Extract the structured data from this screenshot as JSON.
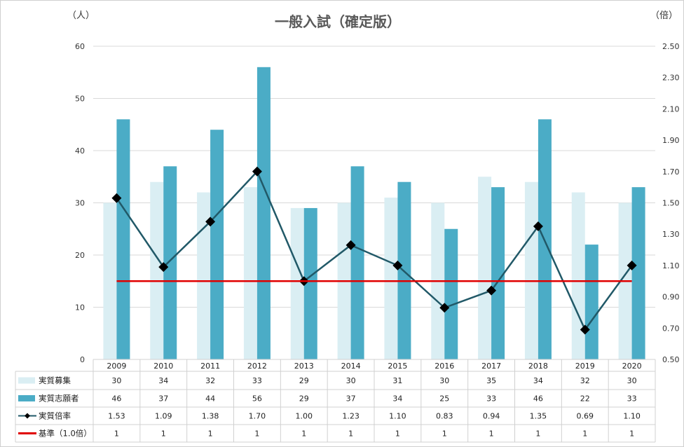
{
  "chart_data": {
    "type": "bar",
    "title": "一般入試（確定版）",
    "left_unit": "（人）",
    "right_unit": "（倍）",
    "categories": [
      "2009",
      "2010",
      "2011",
      "2012",
      "2013",
      "2014",
      "2015",
      "2016",
      "2017",
      "2018",
      "2019",
      "2020"
    ],
    "y_left": {
      "min": 0,
      "max": 60,
      "step": 10,
      "ticks": [
        "0",
        "10",
        "20",
        "30",
        "40",
        "50",
        "60"
      ]
    },
    "y_right": {
      "min": 0.5,
      "max": 2.5,
      "ticks": [
        "0.50",
        "0.70",
        "0.90",
        "1.10",
        "1.30",
        "1.50",
        "1.70",
        "1.90",
        "2.10",
        "2.30",
        "2.50"
      ]
    },
    "series": [
      {
        "name": "実質募集",
        "kind": "bar",
        "color": "#daeef3",
        "values": [
          30,
          34,
          32,
          33,
          29,
          30,
          31,
          30,
          35,
          34,
          32,
          30
        ]
      },
      {
        "name": "実質志願者",
        "kind": "bar",
        "color": "#4bacc6",
        "values": [
          46,
          37,
          44,
          56,
          29,
          37,
          34,
          25,
          33,
          46,
          22,
          33
        ]
      },
      {
        "name": "実質倍率",
        "kind": "line",
        "axis": "right",
        "color": "#215968",
        "marker": "diamond",
        "values": [
          1.53,
          1.09,
          1.38,
          1.7,
          1.0,
          1.23,
          1.1,
          0.83,
          0.94,
          1.35,
          0.69,
          1.1
        ]
      },
      {
        "name": "基準（1.0倍）",
        "kind": "line",
        "axis": "right",
        "color": "#e00000",
        "values": [
          1,
          1,
          1,
          1,
          1,
          1,
          1,
          1,
          1,
          1,
          1,
          1
        ]
      }
    ],
    "table": [
      [
        "30",
        "34",
        "32",
        "33",
        "29",
        "30",
        "31",
        "30",
        "35",
        "34",
        "32",
        "30"
      ],
      [
        "46",
        "37",
        "44",
        "56",
        "29",
        "37",
        "34",
        "25",
        "33",
        "46",
        "22",
        "33"
      ],
      [
        "1.53",
        "1.09",
        "1.38",
        "1.70",
        "1.00",
        "1.23",
        "1.10",
        "0.83",
        "0.94",
        "1.35",
        "0.69",
        "1.10"
      ],
      [
        "1",
        "1",
        "1",
        "1",
        "1",
        "1",
        "1",
        "1",
        "1",
        "1",
        "1",
        "1"
      ]
    ],
    "grid": true,
    "legend": "data-table"
  }
}
